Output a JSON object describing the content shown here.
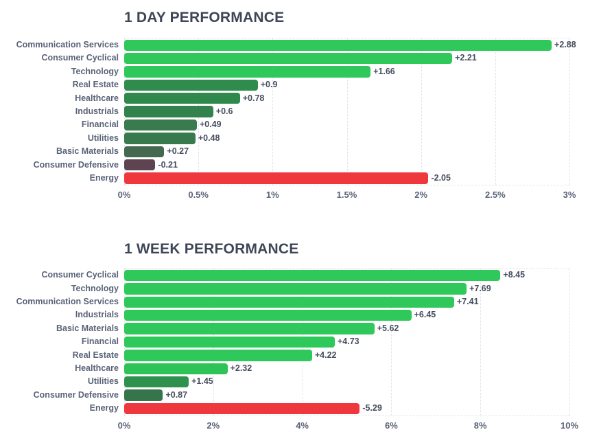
{
  "page": {
    "background": "#ffffff"
  },
  "colors": {
    "title": "#3e4656",
    "category_label": "#5a6377",
    "value_label": "#454d5e",
    "tick_label": "#5a6377",
    "gridline": "#e1e4e8",
    "positive_bright_green": "#2fc85a",
    "negative_red": "#ef383e"
  },
  "chart_data": [
    {
      "type": "bar",
      "orientation": "horizontal",
      "title": "1 DAY PERFORMANCE",
      "categories": [
        "Communication Services",
        "Consumer Cyclical",
        "Technology",
        "Real Estate",
        "Healthcare",
        "Industrials",
        "Financial",
        "Utilities",
        "Basic Materials",
        "Consumer Defensive",
        "Energy"
      ],
      "values": [
        2.88,
        2.21,
        1.66,
        0.9,
        0.78,
        0.6,
        0.49,
        0.48,
        0.27,
        -0.21,
        -2.05
      ],
      "value_labels": [
        "+2.88",
        "+2.21",
        "+1.66",
        "+0.9",
        "+0.78",
        "+0.6",
        "+0.49",
        "+0.48",
        "+0.27",
        "-0.21",
        "-2.05"
      ],
      "bar_colors": [
        "#2fc85a",
        "#2fc85a",
        "#2fc85a",
        "#2f8c4d",
        "#2f884c",
        "#33814d",
        "#397a4f",
        "#39794e",
        "#446950",
        "#5d4450",
        "#ef383e"
      ],
      "bar_length_scale": "absolute-value",
      "xlabel": "",
      "ylabel": "",
      "xlim": [
        0,
        3
      ],
      "tick_labels": [
        "0%",
        "0.5%",
        "1%",
        "1.5%",
        "2%",
        "2.5%",
        "3%"
      ],
      "tick_values": [
        0,
        0.5,
        1,
        1.5,
        2,
        2.5,
        3
      ],
      "grid": "vertical-dashed",
      "legend": "none"
    },
    {
      "type": "bar",
      "orientation": "horizontal",
      "title": "1 WEEK PERFORMANCE",
      "categories": [
        "Consumer Cyclical",
        "Technology",
        "Communication Services",
        "Industrials",
        "Basic Materials",
        "Financial",
        "Real Estate",
        "Healthcare",
        "Utilities",
        "Consumer Defensive",
        "Energy"
      ],
      "values": [
        8.45,
        7.69,
        7.41,
        6.45,
        5.62,
        4.73,
        4.22,
        2.32,
        1.45,
        0.87,
        -5.29
      ],
      "value_labels": [
        "+8.45",
        "+7.69",
        "+7.41",
        "+6.45",
        "+5.62",
        "+4.73",
        "+4.22",
        "+2.32",
        "+1.45",
        "+0.87",
        "-5.29"
      ],
      "bar_colors": [
        "#2fc85a",
        "#2fc85a",
        "#2fc85a",
        "#2fc85a",
        "#2fc85a",
        "#2fc85a",
        "#2fc85a",
        "#2ec357",
        "#2e914d",
        "#36744b",
        "#ef383e"
      ],
      "bar_length_scale": "absolute-value",
      "xlabel": "",
      "ylabel": "",
      "xlim": [
        0,
        10
      ],
      "tick_labels": [
        "0%",
        "2%",
        "4%",
        "6%",
        "8%",
        "10%"
      ],
      "tick_values": [
        0,
        2,
        4,
        6,
        8,
        10
      ],
      "grid": "vertical-dashed",
      "legend": "none"
    }
  ]
}
